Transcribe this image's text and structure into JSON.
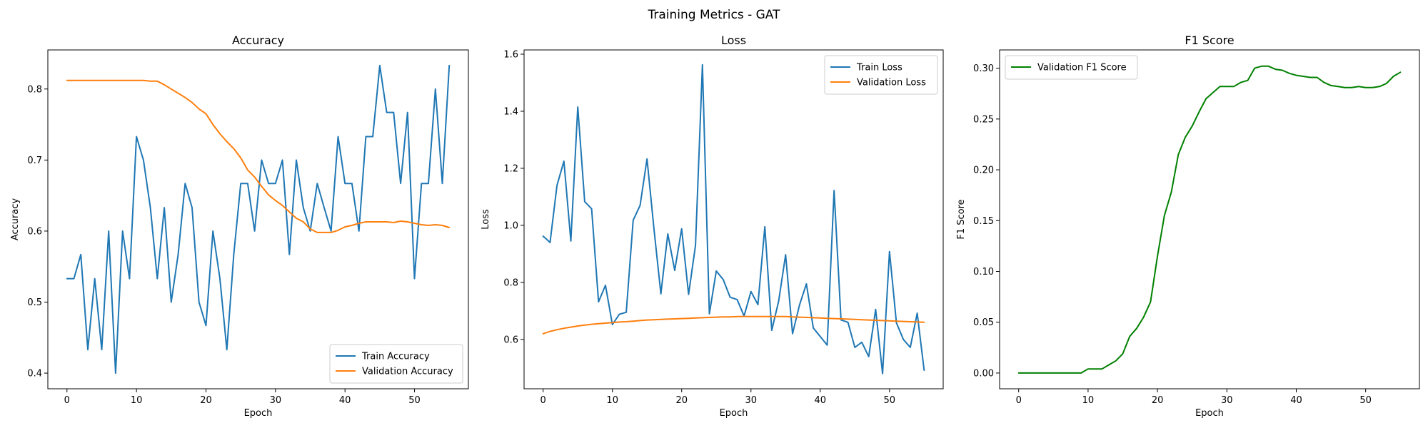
{
  "figure": {
    "suptitle": "Training Metrics - GAT"
  },
  "colors": {
    "train": "#1f77b4",
    "validation": "#ff7f0e",
    "f1": "#008000"
  },
  "chart_data": [
    {
      "type": "line",
      "title": "Accuracy",
      "xlabel": "Epoch",
      "ylabel": "Accuracy",
      "xlim": [
        -2.75,
        57.75
      ],
      "ylim": [
        0.378,
        0.855
      ],
      "xticks": [
        0,
        10,
        20,
        30,
        40,
        50
      ],
      "yticks": [
        0.4,
        0.5,
        0.6,
        0.7,
        0.8
      ],
      "ytick_labels": [
        "0.4",
        "0.5",
        "0.6",
        "0.7",
        "0.8"
      ],
      "legend": "lower-right",
      "grid": false,
      "series": [
        {
          "name": "Train Accuracy",
          "color": "#1f77b4",
          "x": [
            0,
            1,
            2,
            3,
            4,
            5,
            6,
            7,
            8,
            9,
            10,
            11,
            12,
            13,
            14,
            15,
            16,
            17,
            18,
            19,
            20,
            21,
            22,
            23,
            24,
            25,
            26,
            27,
            28,
            29,
            30,
            31,
            32,
            33,
            34,
            35,
            36,
            37,
            38,
            39,
            40,
            41,
            42,
            43,
            44,
            45,
            46,
            47,
            48,
            49,
            50,
            51,
            52,
            53,
            54,
            55
          ],
          "y": [
            0.533,
            0.533,
            0.567,
            0.433,
            0.533,
            0.433,
            0.6,
            0.4,
            0.6,
            0.533,
            0.733,
            0.7,
            0.633,
            0.533,
            0.633,
            0.5,
            0.567,
            0.667,
            0.633,
            0.5,
            0.467,
            0.6,
            0.533,
            0.433,
            0.567,
            0.667,
            0.667,
            0.6,
            0.7,
            0.667,
            0.667,
            0.7,
            0.567,
            0.7,
            0.633,
            0.6,
            0.667,
            0.633,
            0.6,
            0.733,
            0.667,
            0.667,
            0.6,
            0.733,
            0.733,
            0.833,
            0.767,
            0.767,
            0.667,
            0.767,
            0.533,
            0.667,
            0.667,
            0.8,
            0.667,
            0.833
          ]
        },
        {
          "name": "Validation Accuracy",
          "color": "#ff7f0e",
          "x": [
            0,
            1,
            2,
            3,
            4,
            5,
            6,
            7,
            8,
            9,
            10,
            11,
            12,
            13,
            14,
            15,
            16,
            17,
            18,
            19,
            20,
            21,
            22,
            23,
            24,
            25,
            26,
            27,
            28,
            29,
            30,
            31,
            32,
            33,
            34,
            35,
            36,
            37,
            38,
            39,
            40,
            41,
            42,
            43,
            44,
            45,
            46,
            47,
            48,
            49,
            50,
            51,
            52,
            53,
            54,
            55
          ],
          "y": [
            0.812,
            0.812,
            0.812,
            0.812,
            0.812,
            0.812,
            0.812,
            0.812,
            0.812,
            0.812,
            0.812,
            0.812,
            0.811,
            0.811,
            0.806,
            0.8,
            0.794,
            0.788,
            0.781,
            0.772,
            0.765,
            0.75,
            0.737,
            0.726,
            0.716,
            0.703,
            0.686,
            0.676,
            0.663,
            0.651,
            0.643,
            0.636,
            0.627,
            0.618,
            0.613,
            0.603,
            0.598,
            0.598,
            0.598,
            0.601,
            0.606,
            0.608,
            0.611,
            0.613,
            0.613,
            0.613,
            0.613,
            0.612,
            0.614,
            0.613,
            0.611,
            0.609,
            0.608,
            0.609,
            0.608,
            0.605
          ]
        }
      ]
    },
    {
      "type": "line",
      "title": "Loss",
      "xlabel": "Epoch",
      "ylabel": "Loss",
      "xlim": [
        -2.75,
        57.75
      ],
      "ylim": [
        0.427,
        1.615
      ],
      "xticks": [
        0,
        10,
        20,
        30,
        40,
        50
      ],
      "yticks": [
        0.6,
        0.8,
        1.0,
        1.2,
        1.4,
        1.6
      ],
      "ytick_labels": [
        "0.6",
        "0.8",
        "1.0",
        "1.2",
        "1.4",
        "1.6"
      ],
      "legend": "upper-right",
      "grid": false,
      "series": [
        {
          "name": "Train Loss",
          "color": "#1f77b4",
          "x": [
            0,
            1,
            2,
            3,
            4,
            5,
            6,
            7,
            8,
            9,
            10,
            11,
            12,
            13,
            14,
            15,
            16,
            17,
            18,
            19,
            20,
            21,
            22,
            23,
            24,
            25,
            26,
            27,
            28,
            29,
            30,
            31,
            32,
            33,
            34,
            35,
            36,
            37,
            38,
            39,
            40,
            41,
            42,
            43,
            44,
            45,
            46,
            47,
            48,
            49,
            50,
            51,
            52,
            53,
            54,
            55
          ],
          "y": [
            0.962,
            0.94,
            1.14,
            1.225,
            0.945,
            1.415,
            1.083,
            1.058,
            0.732,
            0.79,
            0.652,
            0.688,
            0.695,
            1.018,
            1.07,
            1.233,
            0.988,
            0.76,
            0.97,
            0.842,
            0.988,
            0.758,
            0.93,
            1.563,
            0.69,
            0.84,
            0.81,
            0.748,
            0.74,
            0.682,
            0.768,
            0.722,
            0.995,
            0.632,
            0.735,
            0.897,
            0.62,
            0.72,
            0.795,
            0.64,
            0.61,
            0.58,
            1.122,
            0.668,
            0.66,
            0.572,
            0.59,
            0.54,
            0.705,
            0.48,
            0.908,
            0.658,
            0.6,
            0.572,
            0.692,
            0.492
          ]
        },
        {
          "name": "Validation Loss",
          "color": "#ff7f0e",
          "x": [
            0,
            1,
            2,
            3,
            4,
            5,
            6,
            7,
            8,
            9,
            10,
            11,
            12,
            13,
            14,
            15,
            16,
            17,
            18,
            19,
            20,
            21,
            22,
            23,
            24,
            25,
            26,
            27,
            28,
            29,
            30,
            31,
            32,
            33,
            34,
            35,
            36,
            37,
            38,
            39,
            40,
            41,
            42,
            43,
            44,
            45,
            46,
            47,
            48,
            49,
            50,
            51,
            52,
            53,
            54,
            55
          ],
          "y": [
            0.62,
            0.628,
            0.634,
            0.639,
            0.643,
            0.647,
            0.65,
            0.653,
            0.655,
            0.657,
            0.659,
            0.661,
            0.662,
            0.664,
            0.666,
            0.668,
            0.669,
            0.67,
            0.671,
            0.672,
            0.673,
            0.674,
            0.675,
            0.676,
            0.677,
            0.678,
            0.679,
            0.679,
            0.68,
            0.68,
            0.68,
            0.68,
            0.68,
            0.68,
            0.68,
            0.68,
            0.679,
            0.678,
            0.677,
            0.676,
            0.675,
            0.674,
            0.673,
            0.672,
            0.671,
            0.67,
            0.669,
            0.668,
            0.667,
            0.666,
            0.665,
            0.664,
            0.663,
            0.662,
            0.661,
            0.66
          ]
        }
      ]
    },
    {
      "type": "line",
      "title": "F1 Score",
      "xlabel": "Epoch",
      "ylabel": "F1 Score",
      "xlim": [
        -2.75,
        57.75
      ],
      "ylim": [
        -0.0155,
        0.318
      ],
      "xticks": [
        0,
        10,
        20,
        30,
        40,
        50
      ],
      "yticks": [
        0.0,
        0.05,
        0.1,
        0.15,
        0.2,
        0.25,
        0.3
      ],
      "ytick_labels": [
        "0.00",
        "0.05",
        "0.10",
        "0.15",
        "0.20",
        "0.25",
        "0.30"
      ],
      "legend": "upper-left",
      "grid": false,
      "series": [
        {
          "name": "Validation F1 Score",
          "color": "#008000",
          "x": [
            0,
            1,
            2,
            3,
            4,
            5,
            6,
            7,
            8,
            9,
            10,
            11,
            12,
            13,
            14,
            15,
            16,
            17,
            18,
            19,
            20,
            21,
            22,
            23,
            24,
            25,
            26,
            27,
            28,
            29,
            30,
            31,
            32,
            33,
            34,
            35,
            36,
            37,
            38,
            39,
            40,
            41,
            42,
            43,
            44,
            45,
            46,
            47,
            48,
            49,
            50,
            51,
            52,
            53,
            54,
            55
          ],
          "y": [
            0.0,
            0.0,
            0.0,
            0.0,
            0.0,
            0.0,
            0.0,
            0.0,
            0.0,
            0.0,
            0.004,
            0.004,
            0.004,
            0.008,
            0.012,
            0.019,
            0.036,
            0.044,
            0.055,
            0.07,
            0.115,
            0.155,
            0.178,
            0.215,
            0.232,
            0.243,
            0.257,
            0.27,
            0.276,
            0.282,
            0.282,
            0.282,
            0.286,
            0.288,
            0.3,
            0.302,
            0.302,
            0.299,
            0.298,
            0.295,
            0.293,
            0.292,
            0.291,
            0.291,
            0.286,
            0.283,
            0.282,
            0.281,
            0.281,
            0.282,
            0.281,
            0.281,
            0.282,
            0.285,
            0.292,
            0.296
          ]
        }
      ]
    }
  ]
}
